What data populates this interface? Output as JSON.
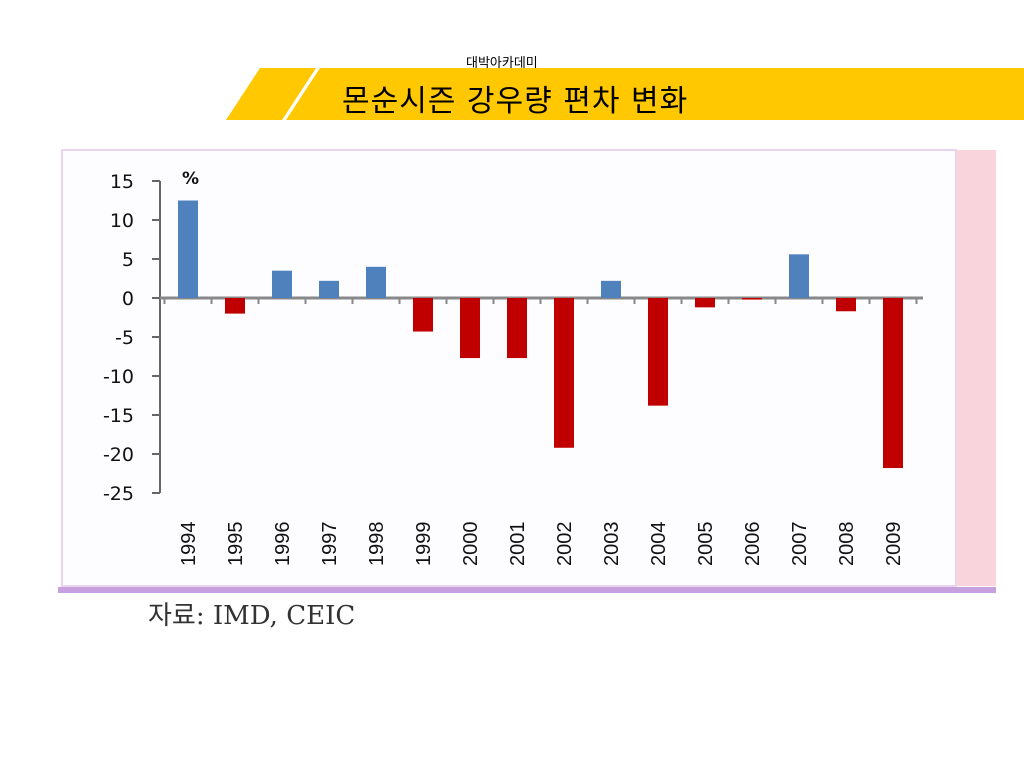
{
  "header": {
    "brand": "대박아카데미",
    "title": "몬순시즌 강우량 편차 변화",
    "banner_color": "#FFC800"
  },
  "source_text": "자료: IMD, CEIC",
  "chart_data": {
    "type": "bar",
    "title": "",
    "ylabel": "%",
    "xlabel": "",
    "ylim": [
      -25,
      15
    ],
    "yticks": [
      15,
      10,
      5,
      0,
      -5,
      -10,
      -15,
      -20,
      -25
    ],
    "grid": false,
    "categories": [
      "1994",
      "1995",
      "1996",
      "1997",
      "1998",
      "1999",
      "2000",
      "2001",
      "2002",
      "2003",
      "2004",
      "2005",
      "2006",
      "2007",
      "2008",
      "2009"
    ],
    "values": [
      12.5,
      -2,
      3.5,
      2.2,
      4,
      -4.3,
      -7.7,
      -7.7,
      -19.2,
      2.2,
      -13.8,
      -1.2,
      -0.2,
      5.6,
      -1.7,
      -21.8
    ],
    "colors": {
      "positive": "#4F81BD",
      "negative": "#C00000"
    }
  }
}
